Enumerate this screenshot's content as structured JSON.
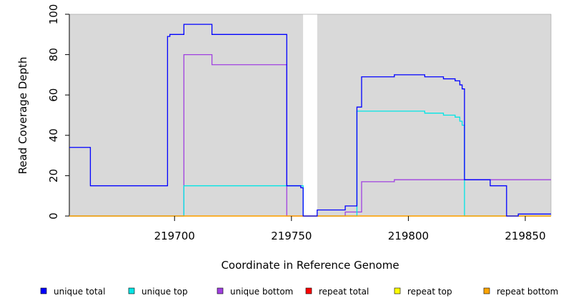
{
  "chart_data": {
    "type": "line",
    "title": "",
    "xlabel": "Coordinate in Reference Genome",
    "ylabel": "Read Coverage Depth",
    "xlim": [
      219655,
      219861
    ],
    "ylim": [
      0,
      100
    ],
    "x_ticks": [
      219700,
      219750,
      219800,
      219850
    ],
    "y_ticks": [
      0,
      20,
      40,
      60,
      80,
      100
    ],
    "gap_region": [
      219755,
      219761
    ],
    "plot_background": "#d9d9d9",
    "gap_color": "#ffffff",
    "legend_position": "bottom",
    "series": [
      {
        "name": "unique total",
        "color": "#0000ff",
        "points": [
          [
            219655,
            34
          ],
          [
            219664,
            34
          ],
          [
            219664,
            15
          ],
          [
            219697,
            15
          ],
          [
            219697,
            89
          ],
          [
            219698,
            89
          ],
          [
            219698,
            90
          ],
          [
            219704,
            90
          ],
          [
            219704,
            95
          ],
          [
            219716,
            95
          ],
          [
            219716,
            90
          ],
          [
            219748,
            90
          ],
          [
            219748,
            15
          ],
          [
            219754,
            15
          ],
          [
            219754,
            14
          ],
          [
            219755,
            14
          ],
          [
            219755,
            0
          ],
          [
            219761,
            0
          ],
          [
            219761,
            3
          ],
          [
            219773,
            3
          ],
          [
            219773,
            5
          ],
          [
            219778,
            5
          ],
          [
            219778,
            54
          ],
          [
            219780,
            54
          ],
          [
            219780,
            69
          ],
          [
            219794,
            69
          ],
          [
            219794,
            70
          ],
          [
            219807,
            70
          ],
          [
            219807,
            69
          ],
          [
            219815,
            69
          ],
          [
            219815,
            68
          ],
          [
            219820,
            68
          ],
          [
            219820,
            67
          ],
          [
            219822,
            67
          ],
          [
            219822,
            65
          ],
          [
            219823,
            65
          ],
          [
            219823,
            63
          ],
          [
            219824,
            63
          ],
          [
            219824,
            18
          ],
          [
            219835,
            18
          ],
          [
            219835,
            15
          ],
          [
            219842,
            15
          ],
          [
            219842,
            0
          ],
          [
            219847,
            0
          ],
          [
            219847,
            1
          ],
          [
            219861,
            1
          ]
        ]
      },
      {
        "name": "unique top",
        "color": "#00e5e5",
        "points": [
          [
            219655,
            0
          ],
          [
            219704,
            0
          ],
          [
            219704,
            15
          ],
          [
            219755,
            15
          ],
          [
            219755,
            0
          ],
          [
            219778,
            0
          ],
          [
            219778,
            52
          ],
          [
            219807,
            52
          ],
          [
            219807,
            51
          ],
          [
            219815,
            51
          ],
          [
            219815,
            50
          ],
          [
            219820,
            50
          ],
          [
            219820,
            49
          ],
          [
            219822,
            49
          ],
          [
            219822,
            47
          ],
          [
            219823,
            47
          ],
          [
            219823,
            45
          ],
          [
            219824,
            45
          ],
          [
            219824,
            0
          ],
          [
            219861,
            0
          ]
        ]
      },
      {
        "name": "unique bottom",
        "color": "#a040e0",
        "points": [
          [
            219655,
            0
          ],
          [
            219704,
            0
          ],
          [
            219704,
            80
          ],
          [
            219716,
            80
          ],
          [
            219716,
            75
          ],
          [
            219748,
            75
          ],
          [
            219748,
            0
          ],
          [
            219773,
            0
          ],
          [
            219773,
            2
          ],
          [
            219780,
            2
          ],
          [
            219780,
            17
          ],
          [
            219794,
            17
          ],
          [
            219794,
            18
          ],
          [
            219861,
            18
          ]
        ]
      },
      {
        "name": "repeat total",
        "color": "#ff0000",
        "points": [
          [
            219655,
            0
          ],
          [
            219861,
            0
          ]
        ]
      },
      {
        "name": "repeat top",
        "color": "#ffff00",
        "points": [
          [
            219655,
            0
          ],
          [
            219861,
            0
          ]
        ]
      },
      {
        "name": "repeat bottom",
        "color": "#ffa500",
        "points": [
          [
            219655,
            0
          ],
          [
            219861,
            0
          ]
        ]
      }
    ]
  },
  "draw_order": [
    "unique bottom",
    "unique top",
    "repeat total",
    "repeat top",
    "repeat bottom",
    "unique total"
  ]
}
